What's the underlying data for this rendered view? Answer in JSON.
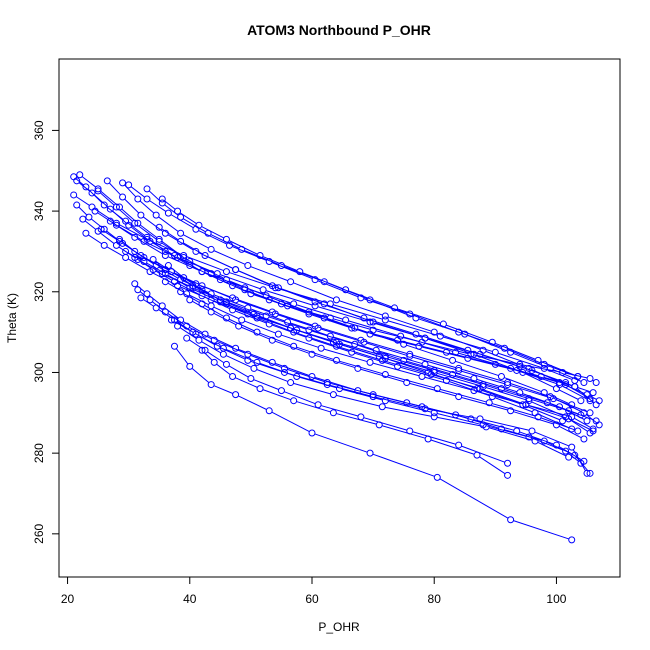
{
  "chart_data": {
    "type": "line",
    "title": "ATOM3 Northbound P_OHR",
    "xlabel": "P_OHR",
    "ylabel": "Theta (K)",
    "xlim": [
      18.6,
      110.4
    ],
    "ylim": [
      249.3,
      377.7
    ],
    "xticks": [
      20,
      40,
      60,
      80,
      100
    ],
    "yticks": [
      260,
      280,
      300,
      320,
      340,
      360
    ],
    "grid": false,
    "series_style": {
      "color": "#0000ff",
      "marker": "open-circle"
    },
    "series": [
      {
        "x": [
          21.0,
          23.0,
          26.0,
          29.5,
          33.0,
          36.0,
          40.0,
          45.0,
          50.0,
          56.0,
          63.0,
          70.0,
          78.0,
          86.0,
          94.0,
          101.0,
          105.5,
          106.5
        ],
        "y": [
          348.5,
          346.0,
          341.5,
          337.5,
          333.5,
          330.0,
          326.5,
          323.0,
          319.5,
          316.5,
          313.5,
          310.5,
          307.5,
          304.5,
          302.0,
          300.0,
          298.5,
          297.5
        ]
      },
      {
        "x": [
          21.5,
          24.0,
          27.0,
          30.0,
          33.5,
          37.5,
          42.0,
          47.0,
          53.0,
          59.5,
          66.5,
          74.0,
          82.0,
          90.0,
          97.5,
          103.0,
          106.0
        ],
        "y": [
          347.5,
          344.5,
          340.5,
          336.5,
          332.5,
          329.0,
          325.0,
          321.5,
          318.0,
          314.5,
          311.0,
          308.0,
          305.0,
          302.0,
          299.0,
          296.5,
          295.0
        ]
      },
      {
        "x": [
          22.0,
          25.0,
          28.5,
          31.5,
          35.0,
          39.0,
          43.5,
          49.0,
          55.0,
          62.0,
          69.5,
          77.5,
          85.5,
          93.5,
          100.5,
          105.0,
          107.0
        ],
        "y": [
          349.0,
          345.5,
          341.0,
          337.0,
          333.0,
          328.5,
          324.5,
          320.5,
          317.0,
          313.5,
          309.5,
          306.5,
          303.5,
          300.5,
          297.5,
          294.5,
          293.0
        ]
      },
      {
        "x": [
          25.0,
          28.0,
          31.0,
          35.0,
          40.0,
          46.0,
          52.5,
          59.5,
          67.0,
          75.0,
          83.0,
          91.0,
          98.0,
          102.5
        ],
        "y": [
          345.0,
          341.0,
          337.0,
          332.5,
          327.5,
          323.0,
          319.0,
          315.0,
          311.0,
          307.0,
          303.0,
          299.0,
          295.0,
          292.0
        ]
      },
      {
        "x": [
          26.5,
          29.0,
          32.0,
          36.0,
          41.0,
          47.5,
          54.5,
          62.0,
          70.0,
          78.5,
          86.5,
          94.5,
          100.0,
          104.0
        ],
        "y": [
          347.5,
          343.5,
          339.0,
          334.5,
          330.0,
          325.5,
          321.0,
          317.0,
          312.5,
          308.5,
          304.5,
          300.0,
          296.0,
          293.0
        ]
      },
      {
        "x": [
          29.0,
          31.5,
          34.5,
          38.5,
          43.5,
          49.5,
          56.5,
          64.0,
          72.0,
          80.0,
          88.0,
          95.5,
          101.5,
          105.5
        ],
        "y": [
          347.0,
          343.0,
          339.0,
          334.5,
          330.5,
          326.5,
          322.5,
          318.0,
          314.0,
          310.0,
          305.5,
          301.0,
          297.0,
          293.5
        ]
      },
      {
        "x": [
          30.0,
          33.0,
          36.5,
          41.0,
          46.5,
          53.0,
          60.5,
          68.0,
          76.0,
          84.0,
          91.5,
          98.0,
          103.5
        ],
        "y": [
          346.5,
          343.0,
          339.5,
          335.5,
          331.5,
          327.5,
          323.0,
          318.5,
          314.5,
          310.0,
          306.0,
          302.0,
          299.0
        ]
      },
      {
        "x": [
          33.0,
          35.5,
          38.5,
          43.0,
          48.5,
          55.0,
          62.0,
          69.5,
          77.0,
          85.0,
          92.5,
          99.0,
          104.5
        ],
        "y": [
          345.5,
          342.0,
          338.5,
          334.5,
          330.5,
          326.5,
          322.5,
          318.0,
          313.5,
          309.5,
          305.0,
          301.0,
          297.5
        ]
      },
      {
        "x": [
          35.5,
          38.0,
          41.5,
          46.0,
          51.5,
          58.0,
          65.5,
          73.5,
          81.5,
          89.5,
          97.0,
          103.5
        ],
        "y": [
          343.0,
          340.0,
          336.5,
          333.0,
          329.0,
          325.0,
          320.5,
          316.0,
          312.0,
          307.5,
          303.0,
          299.0
        ]
      },
      {
        "x": [
          21.5,
          23.5,
          26.0,
          29.0,
          32.5,
          37.0,
          42.0,
          47.5,
          54.0,
          61.0,
          68.5,
          76.0,
          84.0,
          92.0,
          99.5,
          105.5
        ],
        "y": [
          341.5,
          338.5,
          335.5,
          332.0,
          328.5,
          325.0,
          321.5,
          318.0,
          314.5,
          311.0,
          307.5,
          304.0,
          300.5,
          297.0,
          293.5,
          290.0
        ]
      },
      {
        "x": [
          22.5,
          25.0,
          28.0,
          31.5,
          35.5,
          40.5,
          46.0,
          52.5,
          59.5,
          67.0,
          75.0,
          83.0,
          91.0,
          98.5,
          104.0
        ],
        "y": [
          338.0,
          335.0,
          331.5,
          328.0,
          324.5,
          321.0,
          317.5,
          314.0,
          310.5,
          307.0,
          303.0,
          299.5,
          296.0,
          292.5,
          289.5
        ]
      },
      {
        "x": [
          23.0,
          26.0,
          29.5,
          33.5,
          38.0,
          43.5,
          49.5,
          56.5,
          64.0,
          72.0,
          80.0,
          88.0,
          95.5,
          102.0,
          106.5
        ],
        "y": [
          334.5,
          331.5,
          328.5,
          325.0,
          321.5,
          318.0,
          314.5,
          311.0,
          307.5,
          304.0,
          300.5,
          297.0,
          293.5,
          290.5,
          288.0
        ]
      },
      {
        "x": [
          25.5,
          28.5,
          32.0,
          36.0,
          41.0,
          47.0,
          53.5,
          60.5,
          68.0,
          76.0,
          84.0,
          92.0,
          99.0,
          104.5,
          107.0
        ],
        "y": [
          335.5,
          332.5,
          329.0,
          325.5,
          322.0,
          318.5,
          315.0,
          311.5,
          308.0,
          304.5,
          301.0,
          297.5,
          294.0,
          290.0,
          287.0
        ]
      },
      {
        "x": [
          28.5,
          31.0,
          34.5,
          38.5,
          43.5,
          49.5,
          56.0,
          63.0,
          70.5,
          78.5,
          86.5,
          94.0,
          100.5,
          105.0
        ],
        "y": [
          333.0,
          330.0,
          326.5,
          323.0,
          319.5,
          316.0,
          312.5,
          309.0,
          305.5,
          302.0,
          298.5,
          295.0,
          291.5,
          288.0
        ]
      },
      {
        "x": [
          29.5,
          32.5,
          36.0,
          40.0,
          45.0,
          51.0,
          57.5,
          64.5,
          72.0,
          80.0,
          88.0,
          95.5,
          101.5,
          105.5
        ],
        "y": [
          330.0,
          327.5,
          324.5,
          321.0,
          317.5,
          314.0,
          310.5,
          307.0,
          303.5,
          300.0,
          296.5,
          293.0,
          289.0,
          285.0
        ]
      },
      {
        "x": [
          31.0,
          34.0,
          37.5,
          42.0,
          47.0,
          53.0,
          59.5,
          66.5,
          74.0,
          82.0,
          89.5,
          96.5,
          102.5
        ],
        "y": [
          328.5,
          325.5,
          322.5,
          319.0,
          315.5,
          312.0,
          308.5,
          305.0,
          301.5,
          298.0,
          294.0,
          290.0,
          286.0
        ]
      },
      {
        "x": [
          34.0,
          37.0,
          40.5,
          45.0,
          50.5,
          56.5,
          63.5,
          71.0,
          79.0,
          87.0,
          94.5,
          101.0
        ],
        "y": [
          328.0,
          325.0,
          321.5,
          318.0,
          314.5,
          311.0,
          307.5,
          304.0,
          300.0,
          296.0,
          292.0,
          288.0
        ]
      },
      {
        "x": [
          36.5,
          39.0,
          42.0,
          46.0,
          51.0,
          57.0,
          64.0,
          71.5,
          79.5,
          87.5,
          95.0,
          102.0,
          106.0
        ],
        "y": [
          326.5,
          323.5,
          320.5,
          317.0,
          313.5,
          310.0,
          306.5,
          303.0,
          299.5,
          296.0,
          292.0,
          288.5,
          285.5
        ]
      },
      {
        "x": [
          31.0,
          33.0,
          35.5,
          38.5,
          42.5,
          47.5,
          53.5,
          60.0,
          67.5,
          75.5,
          83.5,
          91.0,
          98.0,
          103.0,
          105.5
        ],
        "y": [
          322.0,
          319.5,
          316.5,
          313.0,
          309.5,
          306.0,
          302.5,
          299.0,
          295.5,
          292.5,
          289.5,
          286.0,
          283.0,
          279.5,
          275.0
        ]
      },
      {
        "x": [
          31.5,
          33.5,
          36.0,
          39.5,
          44.0,
          49.5,
          55.5,
          62.5,
          70.0,
          78.0,
          86.0,
          93.5,
          100.0,
          104.5
        ],
        "y": [
          320.5,
          318.0,
          315.0,
          311.5,
          308.0,
          304.5,
          301.0,
          297.5,
          294.5,
          291.5,
          288.5,
          285.5,
          282.0,
          278.0
        ]
      },
      {
        "x": [
          32.0,
          34.5,
          37.5,
          41.0,
          45.5,
          51.0,
          57.5,
          64.5,
          72.0,
          80.0,
          88.0,
          95.5,
          101.5,
          104.0
        ],
        "y": [
          318.5,
          316.0,
          313.0,
          309.5,
          306.0,
          302.5,
          299.0,
          296.0,
          293.0,
          290.0,
          287.0,
          284.0,
          280.5,
          277.5
        ]
      },
      {
        "x": [
          37.0,
          40.5,
          44.5,
          49.5,
          55.5,
          62.5,
          70.0,
          78.5,
          87.5,
          96.0,
          102.5,
          105.0
        ],
        "y": [
          313.0,
          310.0,
          306.5,
          303.0,
          300.0,
          297.0,
          294.0,
          291.0,
          288.5,
          285.5,
          281.5,
          275.0
        ]
      },
      {
        "x": [
          38.0,
          41.5,
          45.5,
          50.5,
          56.5,
          63.5,
          71.5,
          80.0,
          88.5,
          96.5,
          102.0
        ],
        "y": [
          311.5,
          308.0,
          304.5,
          301.0,
          297.5,
          294.5,
          291.5,
          289.0,
          286.5,
          283.0,
          279.0
        ]
      },
      {
        "x": [
          39.5,
          42.5,
          46.0,
          50.0,
          55.0,
          61.0,
          68.0,
          76.0,
          84.0,
          92.0
        ],
        "y": [
          308.5,
          305.5,
          302.0,
          298.5,
          295.5,
          292.0,
          289.0,
          285.5,
          282.0,
          277.5
        ]
      },
      {
        "x": [
          42.0,
          44.0,
          47.0,
          51.5,
          57.0,
          63.5,
          71.0,
          79.0,
          87.0,
          92.0
        ],
        "y": [
          305.5,
          302.5,
          299.0,
          296.0,
          293.0,
          290.0,
          287.0,
          283.5,
          279.5,
          274.5
        ]
      },
      {
        "x": [
          37.5,
          40.0,
          43.5,
          47.5,
          53.0,
          60.0,
          69.5,
          80.5,
          92.5,
          102.5
        ],
        "y": [
          306.5,
          301.5,
          297.0,
          294.5,
          290.5,
          285.0,
          280.0,
          274.0,
          263.5,
          258.5
        ]
      },
      {
        "x": [
          21.0,
          24.0,
          28.0,
          33.0,
          39.0,
          46.0,
          54.0,
          63.0,
          72.0,
          81.0,
          90.0,
          98.0,
          103.0
        ],
        "y": [
          344.0,
          341.0,
          337.0,
          333.0,
          329.0,
          325.0,
          321.0,
          317.0,
          313.0,
          309.0,
          305.0,
          301.0,
          298.0
        ]
      },
      {
        "x": [
          24.5,
          28.0,
          32.5,
          38.0,
          44.5,
          52.0,
          60.5,
          69.5,
          78.5,
          87.5,
          96.0,
          103.0,
          106.5
        ],
        "y": [
          340.0,
          336.5,
          332.5,
          328.5,
          324.5,
          320.5,
          316.5,
          312.5,
          308.5,
          304.5,
          300.5,
          296.5,
          292.0
        ]
      },
      {
        "x": [
          27.0,
          31.0,
          36.0,
          42.0,
          49.0,
          57.0,
          65.5,
          74.5,
          83.5,
          92.5,
          100.5,
          105.5
        ],
        "y": [
          337.5,
          333.5,
          329.0,
          325.0,
          321.0,
          317.0,
          313.0,
          309.0,
          305.0,
          301.0,
          297.0,
          293.0
        ]
      },
      {
        "x": [
          35.0,
          38.5,
          42.5,
          47.5,
          53.5,
          60.5,
          68.5,
          77.0,
          85.5,
          94.0,
          101.5
        ],
        "y": [
          336.0,
          332.5,
          329.0,
          325.5,
          321.5,
          317.5,
          313.5,
          309.5,
          305.5,
          301.5,
          297.5
        ]
      },
      {
        "x": [
          36.0,
          39.5,
          43.5,
          48.5,
          54.5,
          61.5,
          69.5,
          78.0,
          86.5,
          95.0,
          102.5,
          106.0
        ],
        "y": [
          322.5,
          319.5,
          316.5,
          313.0,
          309.5,
          306.0,
          302.5,
          299.0,
          295.5,
          292.0,
          289.0,
          286.0
        ]
      },
      {
        "x": [
          38.5,
          42.0,
          46.0,
          51.0,
          57.0,
          64.0,
          72.0,
          80.5,
          89.0,
          97.0,
          103.5
        ],
        "y": [
          320.0,
          317.0,
          313.5,
          310.0,
          306.5,
          303.0,
          299.5,
          296.0,
          292.5,
          289.0,
          285.5
        ]
      },
      {
        "x": [
          40.0,
          43.5,
          48.0,
          53.5,
          60.0,
          67.5,
          75.5,
          84.0,
          92.5,
          100.0,
          104.5
        ],
        "y": [
          318.0,
          315.0,
          311.5,
          308.0,
          304.5,
          301.0,
          297.5,
          294.0,
          290.5,
          287.0,
          283.5
        ]
      }
    ]
  }
}
